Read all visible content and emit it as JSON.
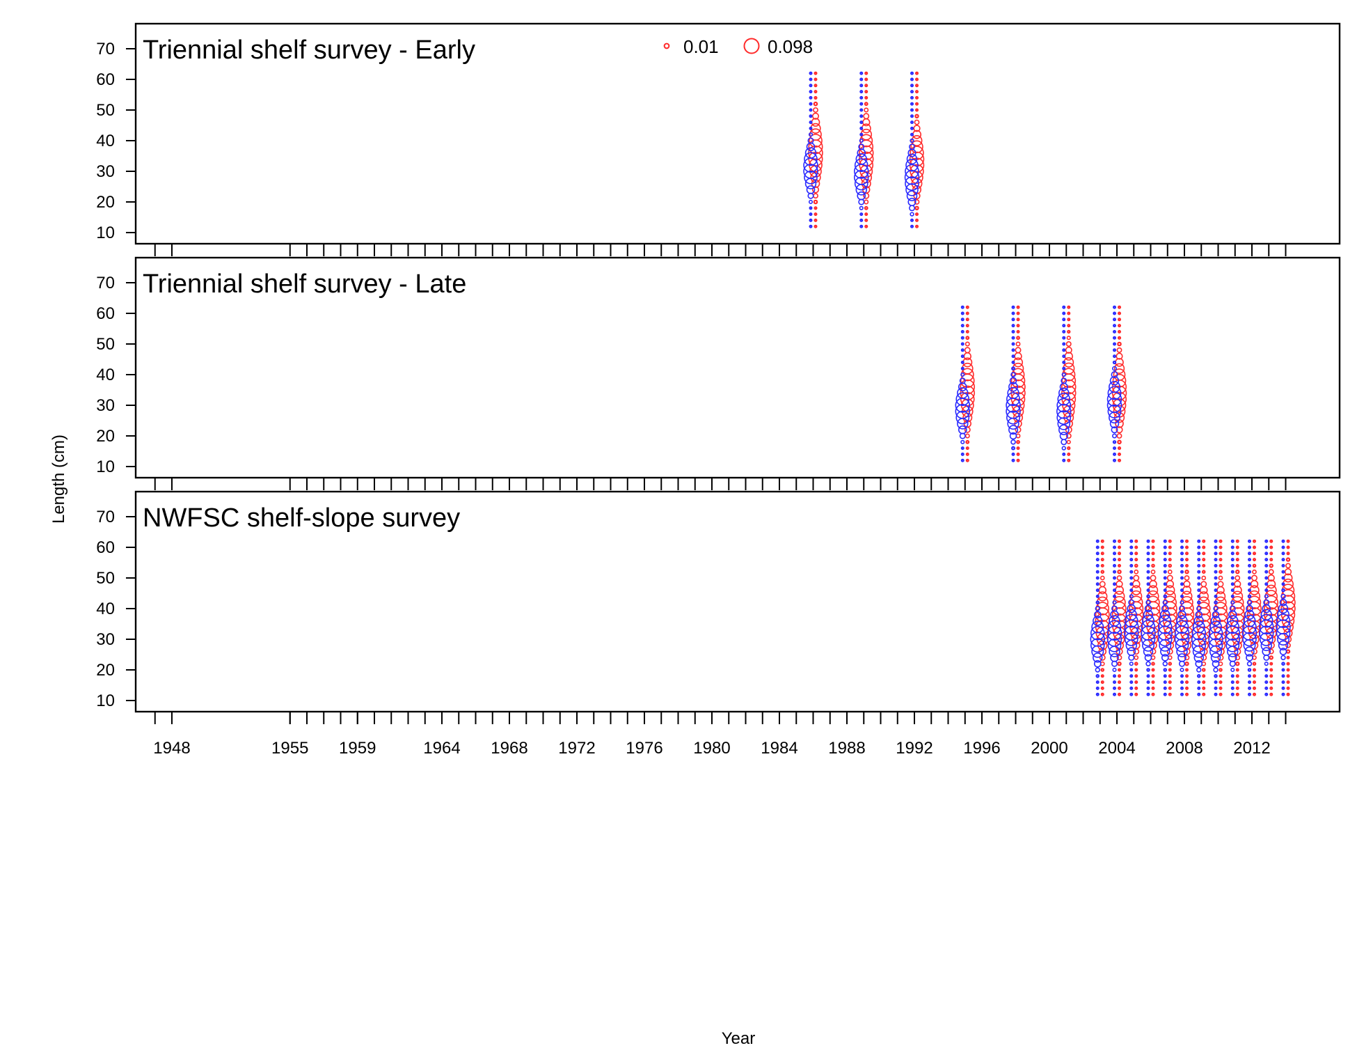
{
  "chart_data": {
    "type": "scatter",
    "subtype": "bubble",
    "xlabel": "Year",
    "ylabel": "Length (cm)",
    "ylim": [
      10,
      70
    ],
    "y_ticks": [
      10,
      20,
      30,
      40,
      50,
      60,
      70
    ],
    "xlim": [
      1946,
      2015
    ],
    "x_tick_years": [
      1948,
      1955,
      1959,
      1964,
      1968,
      1972,
      1976,
      1980,
      1984,
      1988,
      1992,
      1996,
      2000,
      2004,
      2008,
      2012
    ],
    "x_tick_labels": [
      "1948",
      "1955",
      "1959",
      "1964",
      "1968",
      "1972",
      "1976",
      "1980",
      "1984",
      "1988",
      "1992",
      "1996",
      "2000",
      "2004",
      "2008",
      "2012"
    ],
    "minor_tick_years": [
      1947,
      1948,
      1955,
      1956,
      1957,
      1958,
      1959,
      1960,
      1961,
      1962,
      1963,
      1964,
      1965,
      1966,
      1967,
      1968,
      1969,
      1970,
      1971,
      1972,
      1973,
      1974,
      1975,
      1976,
      1977,
      1978,
      1979,
      1980,
      1981,
      1982,
      1983,
      1984,
      1985,
      1986,
      1987,
      1988,
      1989,
      1990,
      1991,
      1992,
      1993,
      1994,
      1995,
      1996,
      1997,
      1998,
      1999,
      2000,
      2001,
      2002,
      2003,
      2004,
      2005,
      2006,
      2007,
      2008,
      2009,
      2010,
      2011,
      2012,
      2013,
      2014
    ],
    "legend": {
      "placement": "top-center",
      "labels": [
        "0.01",
        "0.098"
      ],
      "values": [
        0.01,
        0.098
      ]
    },
    "colors": {
      "female": "#ff2a2a",
      "male": "#2a2aff",
      "axis": "#000000"
    },
    "length_bins": [
      12,
      14,
      16,
      18,
      20,
      22,
      24,
      26,
      28,
      30,
      32,
      34,
      36,
      38,
      40,
      42,
      44,
      46,
      48,
      50,
      52,
      54,
      56,
      58,
      60,
      62
    ],
    "panels": [
      {
        "title": "Triennial shelf survey - Early",
        "years": [
          1986,
          1989,
          1992
        ],
        "male_mean": [
          31,
          29,
          28
        ],
        "male_sd": [
          4.5,
          4.5,
          5
        ],
        "female_mean": [
          36,
          35,
          33
        ],
        "female_sd": [
          6.5,
          6.5,
          6
        ]
      },
      {
        "title": "Triennial shelf survey - Late",
        "years": [
          1995,
          1998,
          2001,
          2004
        ],
        "male_mean": [
          29,
          29,
          28,
          31
        ],
        "male_sd": [
          4.5,
          5,
          5,
          4.8
        ],
        "female_mean": [
          35,
          35,
          35,
          34
        ],
        "female_sd": [
          6.5,
          6.5,
          7,
          6.5
        ]
      },
      {
        "title": "NWFSC shelf-slope survey",
        "years": [
          2003,
          2004,
          2005,
          2006,
          2007,
          2008,
          2009,
          2010,
          2011,
          2012,
          2013,
          2014
        ],
        "male_mean": [
          30,
          31,
          33,
          32,
          32,
          31,
          30,
          30,
          31,
          32,
          33,
          34
        ],
        "male_sd": [
          4.5,
          4.5,
          4.5,
          4.5,
          4.5,
          4.5,
          4.5,
          4.5,
          4.5,
          4.5,
          4.5,
          4.5
        ],
        "female_mean": [
          36,
          37,
          38,
          38,
          38,
          37,
          36,
          36,
          37,
          38,
          39,
          41
        ],
        "female_sd": [
          6,
          6,
          6,
          6,
          6,
          6,
          6,
          6,
          6,
          6,
          6,
          6
        ]
      }
    ]
  }
}
